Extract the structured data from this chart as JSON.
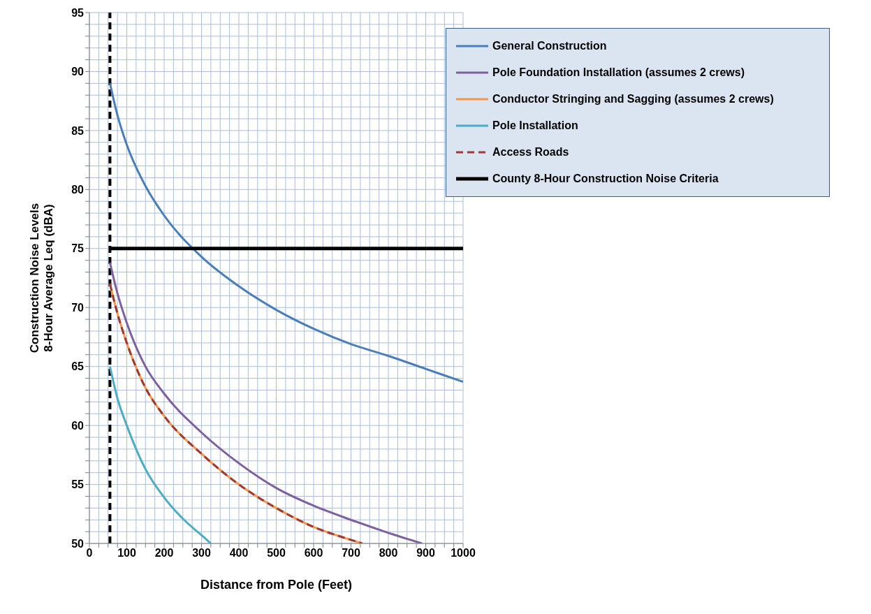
{
  "chart_data": {
    "type": "line",
    "xlabel": "Distance from Pole (Feet)",
    "ylabel": "Construction Noise Levels\n8-Hour Average Leq (dBA)",
    "xlim": [
      0,
      1000
    ],
    "ylim": [
      50,
      95
    ],
    "xticks": [
      0,
      {
        "value": 25,
        "label": null
      },
      {
        "value": 50,
        "label": null
      },
      {
        "value": 75,
        "label": null
      },
      100,
      {
        "value": 125,
        "label": null
      },
      {
        "value": 150,
        "label": null
      },
      {
        "value": 175,
        "label": null
      },
      200,
      {
        "value": 225,
        "label": null
      },
      {
        "value": 250,
        "label": null
      },
      {
        "value": 275,
        "label": null
      },
      300,
      {
        "value": 325,
        "label": null
      },
      {
        "value": 350,
        "label": null
      },
      {
        "value": 375,
        "label": null
      },
      400,
      {
        "value": 425,
        "label": null
      },
      {
        "value": 450,
        "label": null
      },
      {
        "value": 475,
        "label": null
      },
      500,
      {
        "value": 525,
        "label": null
      },
      {
        "value": 550,
        "label": null
      },
      {
        "value": 575,
        "label": null
      },
      600,
      {
        "value": 625,
        "label": null
      },
      {
        "value": 650,
        "label": null
      },
      {
        "value": 675,
        "label": null
      },
      700,
      {
        "value": 725,
        "label": null
      },
      {
        "value": 750,
        "label": null
      },
      {
        "value": 775,
        "label": null
      },
      800,
      {
        "value": 825,
        "label": null
      },
      {
        "value": 850,
        "label": null
      },
      {
        "value": 875,
        "label": null
      },
      900,
      {
        "value": 925,
        "label": null
      },
      {
        "value": 950,
        "label": null
      },
      {
        "value": 975,
        "label": null
      },
      1000
    ],
    "yticks": [
      50,
      {
        "value": 51,
        "label": null
      },
      {
        "value": 52,
        "label": null
      },
      {
        "value": 53,
        "label": null
      },
      {
        "value": 54,
        "label": null
      },
      55,
      {
        "value": 56,
        "label": null
      },
      {
        "value": 57,
        "label": null
      },
      {
        "value": 58,
        "label": null
      },
      {
        "value": 59,
        "label": null
      },
      60,
      {
        "value": 61,
        "label": null
      },
      {
        "value": 62,
        "label": null
      },
      {
        "value": 63,
        "label": null
      },
      {
        "value": 64,
        "label": null
      },
      65,
      {
        "value": 66,
        "label": null
      },
      {
        "value": 67,
        "label": null
      },
      {
        "value": 68,
        "label": null
      },
      {
        "value": 69,
        "label": null
      },
      70,
      {
        "value": 71,
        "label": null
      },
      {
        "value": 72,
        "label": null
      },
      {
        "value": 73,
        "label": null
      },
      {
        "value": 74,
        "label": null
      },
      75,
      {
        "value": 76,
        "label": null
      },
      {
        "value": 77,
        "label": null
      },
      {
        "value": 78,
        "label": null
      },
      {
        "value": 79,
        "label": null
      },
      80,
      {
        "value": 81,
        "label": null
      },
      {
        "value": 82,
        "label": null
      },
      {
        "value": 83,
        "label": null
      },
      {
        "value": 84,
        "label": null
      },
      85,
      {
        "value": 86,
        "label": null
      },
      {
        "value": 87,
        "label": null
      },
      {
        "value": 88,
        "label": null
      },
      {
        "value": 89,
        "label": null
      },
      90,
      {
        "value": 91,
        "label": null
      },
      {
        "value": 92,
        "label": null
      },
      {
        "value": 93,
        "label": null
      },
      {
        "value": 94,
        "label": null
      },
      95
    ],
    "grid": true,
    "legend": "top right",
    "marker": "none",
    "series": [
      {
        "name": "General Construction",
        "color": "#4a7ebb",
        "x": [
          55,
          75,
          100,
          150,
          200,
          300,
          400,
          500,
          600,
          700,
          800,
          900,
          1000
        ],
        "values": [
          89,
          86.3,
          83.8,
          80.3,
          77.8,
          74.3,
          71.8,
          69.8,
          68.2,
          66.9,
          65.9,
          64.8,
          63.7
        ]
      },
      {
        "name": "Pole Foundation Installation (assumes 2 crews)",
        "color": "#7d60a0",
        "x": [
          55,
          75,
          100,
          150,
          200,
          300,
          400,
          500,
          600,
          700,
          800,
          890
        ],
        "values": [
          73.8,
          71.2,
          68.7,
          65,
          62.7,
          59.4,
          56.8,
          54.7,
          53.2,
          52,
          50.9,
          50
        ]
      },
      {
        "name": "Conductor Stringing and Sagging (assumes 2 crews)",
        "color": "#f79646",
        "x": [
          55,
          75,
          100,
          150,
          200,
          300,
          400,
          500,
          600,
          700,
          730
        ],
        "values": [
          72,
          69.5,
          67,
          63.2,
          60.8,
          57.6,
          55,
          53,
          51.4,
          50.3,
          50
        ]
      },
      {
        "name": "Pole Installation",
        "color": "#4bacc6",
        "x": [
          55,
          75,
          100,
          150,
          200,
          250,
          300,
          325
        ],
        "values": [
          65,
          62.3,
          60,
          56.3,
          53.9,
          52.1,
          50.7,
          50
        ]
      },
      {
        "name": "Access Roads",
        "color": "#9b3a36",
        "line_style": "dashed",
        "x": [
          55,
          75,
          100,
          150,
          200,
          300,
          400,
          500,
          600,
          700,
          730
        ],
        "values": [
          72,
          69.5,
          67,
          63.2,
          60.8,
          57.6,
          55,
          53,
          51.4,
          50.3,
          50
        ]
      },
      {
        "name": "County 8-Hour Construction Noise Criteria",
        "color": "#000000",
        "x": [
          55,
          1000
        ],
        "values": [
          75,
          75
        ]
      }
    ],
    "ref_lines": [
      {
        "axis": "x",
        "value": 55,
        "label": null,
        "color": "#000000",
        "line_style": "dashed"
      }
    ]
  }
}
